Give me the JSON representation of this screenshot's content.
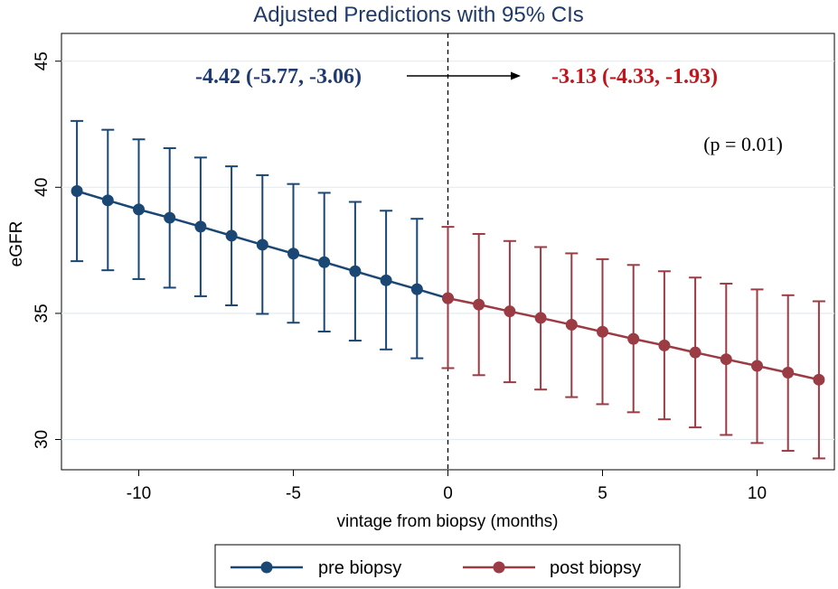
{
  "chart_data": {
    "type": "line",
    "title": "Adjusted Predictions with 95% CIs",
    "xlabel": "vintage from biopsy (months)",
    "ylabel": "eGFR",
    "xlim": [
      -12.5,
      12.5
    ],
    "ylim": [
      28.8,
      46.1
    ],
    "xticks": [
      -10,
      -5,
      0,
      5,
      10
    ],
    "xtick_labels": [
      "-10",
      "-5",
      "0",
      "5",
      "10"
    ],
    "yticks": [
      30,
      35,
      40,
      45
    ],
    "ytick_labels": [
      "30",
      "35",
      "40",
      "45"
    ],
    "grid": true,
    "legend_position": "bottom",
    "reference_line_x": 0,
    "series": [
      {
        "name": "pre biopsy",
        "color": "#1a4773",
        "x": [
          -12,
          -11,
          -10,
          -9,
          -8,
          -7,
          -6,
          -5,
          -4,
          -3,
          -2,
          -1,
          0
        ],
        "y": [
          39.85,
          39.48,
          39.12,
          38.79,
          38.44,
          38.08,
          37.72,
          37.37,
          37.03,
          36.67,
          36.31,
          35.96,
          35.6
        ],
        "lower": [
          37.07,
          36.71,
          36.36,
          36.02,
          35.68,
          35.32,
          34.98,
          34.63,
          34.28,
          33.92,
          33.57,
          33.22,
          null
        ],
        "upper": [
          42.63,
          42.28,
          41.9,
          41.55,
          41.18,
          40.83,
          40.48,
          40.13,
          39.78,
          39.42,
          39.07,
          38.75,
          null
        ]
      },
      {
        "name": "post biopsy",
        "color": "#9b3b44",
        "x": [
          0,
          1,
          2,
          3,
          4,
          5,
          6,
          7,
          8,
          9,
          10,
          11,
          12
        ],
        "y": [
          35.6,
          35.35,
          35.08,
          34.82,
          34.55,
          34.27,
          33.99,
          33.73,
          33.45,
          33.18,
          32.92,
          32.65,
          32.37
        ],
        "lower": [
          32.83,
          32.55,
          32.27,
          31.98,
          31.68,
          31.4,
          31.08,
          30.8,
          30.48,
          30.18,
          29.86,
          29.55,
          29.25
        ],
        "upper": [
          38.43,
          38.15,
          37.87,
          37.63,
          37.38,
          37.15,
          36.92,
          36.67,
          36.42,
          36.18,
          35.95,
          35.72,
          35.48
        ]
      }
    ],
    "annotations": {
      "pre_estimate": {
        "text": "-4.42 (-5.77, -3.06)",
        "color": "#1f3a70"
      },
      "post_estimate": {
        "text": "-3.13 (-4.33, -1.93)",
        "color": "#c0151c"
      },
      "p_value": {
        "text": "(p = 0.01)"
      }
    }
  }
}
